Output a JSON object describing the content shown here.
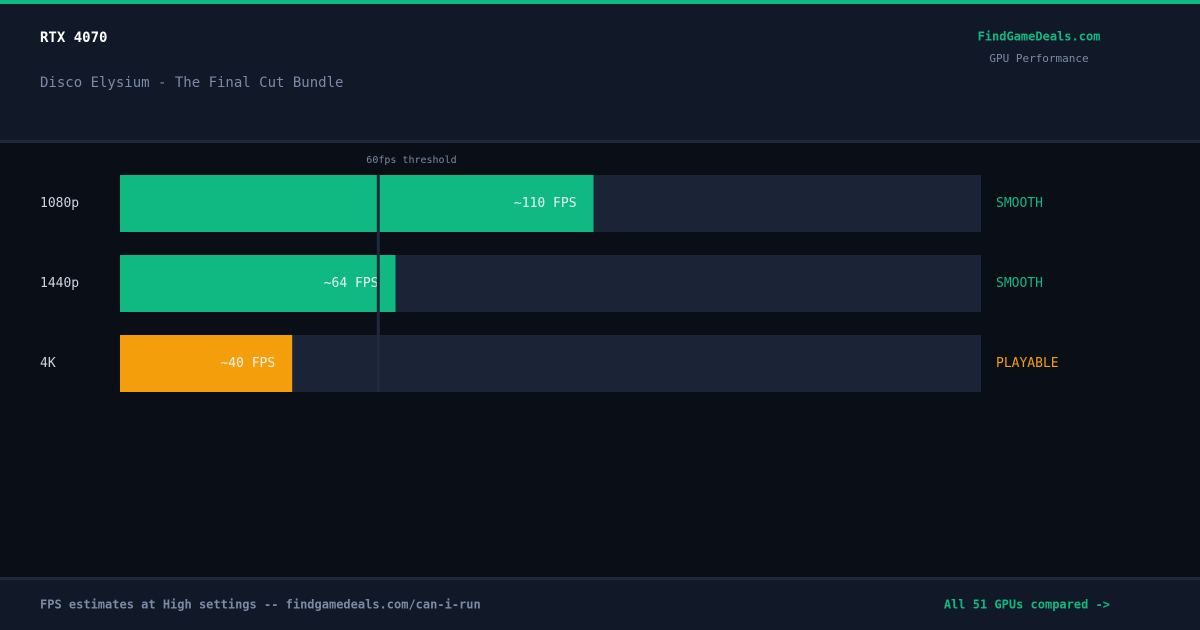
{
  "header": {
    "title": "RTX 4070",
    "subtitle": "Disco Elysium - The Final Cut Bundle",
    "brand": "FindGameDeals.com",
    "brand_subtitle": "GPU Performance"
  },
  "chart_data": {
    "type": "bar",
    "orientation": "horizontal",
    "categories": [
      "1080p",
      "1440p",
      "4K"
    ],
    "values": [
      110,
      64,
      40
    ],
    "value_labels": [
      "~110 FPS",
      "~64 FPS",
      "~40 FPS"
    ],
    "colors": [
      "#10b981",
      "#10b981",
      "#f59e0b"
    ],
    "status": [
      "SMOOTH",
      "SMOOTH",
      "PLAYABLE"
    ],
    "xlim": [
      0,
      200
    ],
    "threshold": {
      "value": 60,
      "label": "60fps threshold"
    }
  },
  "footer": {
    "note": "FPS estimates at High settings -- findgamedeals.com/can-i-run",
    "link": "All 51 GPUs compared ->"
  }
}
